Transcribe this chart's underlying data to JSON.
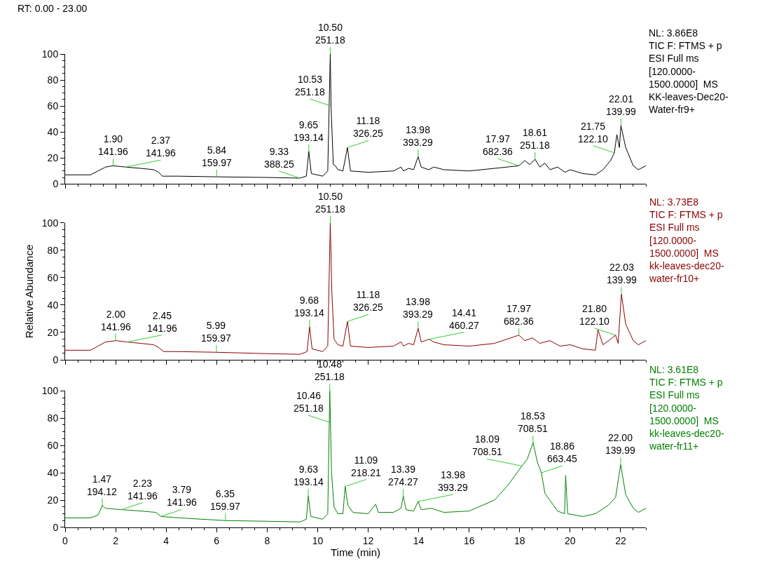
{
  "chart_data": [
    {
      "type": "line",
      "tick_labels": "y",
      "xlim": [
        0,
        23
      ],
      "xticks": [
        0,
        2,
        4,
        6,
        8,
        10,
        12,
        14,
        16,
        18,
        20,
        22
      ],
      "ylim": [
        0,
        100
      ],
      "yticks": [
        0,
        20,
        40,
        60,
        80,
        100
      ],
      "marker": "none",
      "line_style": "solid",
      "series": [
        {
          "color": "#000000",
          "x": [
            0,
            1,
            1.3,
            1.6,
            1.9,
            2.4,
            3.0,
            3.5,
            3.7,
            3.85,
            4.5,
            6,
            8,
            9.3,
            9.55,
            9.65,
            9.75,
            10.2,
            10.4,
            10.5,
            10.53,
            10.62,
            10.7,
            10.8,
            11.0,
            11.18,
            11.3,
            12,
            13,
            13.3,
            13.4,
            13.6,
            13.8,
            13.98,
            14.1,
            14.4,
            14.6,
            15,
            16,
            17,
            17.97,
            18.2,
            18.4,
            18.61,
            18.8,
            19,
            19.2,
            19.5,
            19.8,
            20,
            20.5,
            21,
            21.3,
            21.6,
            21.75,
            21.85,
            21.95,
            22.01,
            22.2,
            22.5,
            22.7,
            23
          ],
          "values": [
            7,
            7,
            10,
            13,
            14,
            13,
            12,
            11,
            9,
            6,
            6,
            5.5,
            5,
            4.5,
            6,
            25,
            8,
            6,
            10,
            100,
            60,
            15,
            14,
            11,
            10,
            28,
            10,
            9,
            10,
            13,
            10,
            12,
            11,
            21,
            13,
            11,
            13,
            11,
            10,
            12,
            14,
            18,
            15,
            19,
            13,
            16,
            11,
            13,
            9,
            11,
            8,
            7,
            11,
            18,
            24,
            38,
            28,
            45,
            28,
            14,
            11,
            14
          ]
        }
      ],
      "annotations": [
        "NL: 3.86E8\nTIC F: FTMS + p\nESI Full ms\n[120.0000-\n1500.0000]  MS\nKK-leaves-Dec20-\nWater-fr9+",
        "RT: 0.00 - 23.00",
        {
          "text": "1.90\n141.96",
          "x": 1.9,
          "y": 14
        },
        {
          "text": "2.37\n141.96",
          "x": 2.4,
          "y": 13
        },
        {
          "text": "5.84\n159.97",
          "x": 6,
          "y": 5.5
        },
        {
          "text": "9.33\n388.25",
          "x": 9.3,
          "y": 4.5
        },
        {
          "text": "9.65\n193.14",
          "x": 9.65,
          "y": 25
        },
        {
          "text": "10.50\n251.18",
          "x": 10.5,
          "y": 100
        },
        {
          "text": "10.53\n251.18",
          "x": 10.53,
          "y": 60
        },
        {
          "text": "11.18\n326.25",
          "x": 11.18,
          "y": 28
        },
        {
          "text": "13.98\n393.29",
          "x": 13.98,
          "y": 21
        },
        {
          "text": "17.97\n682.36",
          "x": 17.97,
          "y": 14
        },
        {
          "text": "18.61\n251.18",
          "x": 18.61,
          "y": 19
        },
        {
          "text": "21.75\n122.10",
          "x": 21.75,
          "y": 24
        },
        {
          "text": "22.01\n139.99",
          "x": 22.01,
          "y": 45
        }
      ]
    },
    {
      "type": "line",
      "tick_labels": "y",
      "ylabel": "Relative Abundance",
      "xlim": [
        0,
        23
      ],
      "xticks": [
        0,
        2,
        4,
        6,
        8,
        10,
        12,
        14,
        16,
        18,
        20,
        22
      ],
      "ylim": [
        0,
        100
      ],
      "yticks": [
        0,
        20,
        40,
        60,
        80,
        100
      ],
      "marker": "none",
      "line_style": "solid",
      "series": [
        {
          "color": "#8b0000",
          "x": [
            0,
            1,
            1.3,
            1.6,
            2.0,
            2.45,
            3.0,
            3.5,
            3.7,
            3.9,
            4.5,
            5.99,
            7,
            8,
            9.3,
            9.58,
            9.68,
            9.78,
            10.2,
            10.4,
            10.5,
            10.56,
            10.65,
            10.8,
            11.0,
            11.18,
            11.3,
            12,
            13,
            13.3,
            13.4,
            13.6,
            13.8,
            13.98,
            14.1,
            14.41,
            14.6,
            15,
            16,
            17,
            17.97,
            18.2,
            18.5,
            18.8,
            19.2,
            19.6,
            20,
            20.5,
            21,
            21.1,
            21.3,
            21.6,
            21.8,
            21.9,
            22.03,
            22.2,
            22.5,
            22.7,
            23
          ],
          "values": [
            7,
            7,
            10,
            13,
            14,
            13,
            12,
            11,
            9,
            6,
            6,
            5.5,
            5,
            4.5,
            4,
            6,
            24,
            8,
            6,
            10,
            100,
            50,
            15,
            11,
            10,
            28,
            10,
            9,
            10,
            13,
            10,
            12,
            11,
            23,
            13,
            15,
            13,
            11,
            10,
            12,
            18,
            14,
            16,
            12,
            14,
            10,
            11,
            8,
            7,
            22,
            11,
            15,
            18,
            12,
            48,
            26,
            14,
            11,
            14
          ]
        }
      ],
      "annotations": [
        "NL: 3.73E8\nTIC F: FTMS + p\nESI Full ms\n[120.0000-\n1500.0000]  MS\nkk-leaves-dec20-\nwater-fr10+",
        {
          "text": "2.00\n141.96",
          "x": 2.0,
          "y": 14
        },
        {
          "text": "2.45\n141.96",
          "x": 2.45,
          "y": 13
        },
        {
          "text": "5.99\n159.97",
          "x": 5.99,
          "y": 5.5
        },
        {
          "text": "9.68\n193.14",
          "x": 9.68,
          "y": 24
        },
        {
          "text": "10.50\n251.18",
          "x": 10.5,
          "y": 100
        },
        {
          "text": "11.18\n326.25",
          "x": 11.18,
          "y": 28
        },
        {
          "text": "13.98\n393.29",
          "x": 13.98,
          "y": 23
        },
        {
          "text": "14.41\n460.27",
          "x": 14.41,
          "y": 15
        },
        {
          "text": "17.97\n682.36",
          "x": 17.97,
          "y": 18
        },
        {
          "text": "21.80\n122.10",
          "x": 21.8,
          "y": 18
        },
        {
          "text": "22.03\n139.99",
          "x": 22.03,
          "y": 48
        }
      ]
    },
    {
      "type": "line",
      "xlabel": "Time (min)",
      "xlim": [
        0,
        23
      ],
      "xticks": [
        0,
        2,
        4,
        6,
        8,
        10,
        12,
        14,
        16,
        18,
        20,
        22
      ],
      "ylim": [
        0,
        100
      ],
      "yticks": [
        0,
        20,
        40,
        60,
        80,
        100
      ],
      "marker": "none",
      "line_style": "solid",
      "series": [
        {
          "color": "#008000",
          "x": [
            0,
            1,
            1.3,
            1.47,
            1.6,
            2.23,
            3.0,
            3.6,
            3.79,
            4.5,
            6.35,
            8,
            9.3,
            9.55,
            9.63,
            9.73,
            10.2,
            10.4,
            10.46,
            10.48,
            10.55,
            10.65,
            10.8,
            11.0,
            11.09,
            11.2,
            11.4,
            12,
            12.3,
            12.4,
            13,
            13.3,
            13.39,
            13.5,
            13.8,
            13.98,
            14.1,
            14.5,
            15,
            16,
            17,
            17.5,
            18.09,
            18.3,
            18.53,
            18.7,
            18.86,
            19.0,
            19.5,
            19.78,
            19.82,
            19.9,
            20.5,
            21,
            21.5,
            21.8,
            22.0,
            22.2,
            22.5,
            22.7,
            23
          ],
          "values": [
            7,
            7,
            9,
            16,
            14,
            13,
            12,
            11,
            8,
            7,
            5,
            4.5,
            4,
            6,
            23,
            8,
            6,
            10,
            77,
            100,
            40,
            15,
            10,
            10,
            30,
            16,
            11,
            10,
            17,
            11,
            11,
            14,
            23,
            13,
            12,
            19,
            13,
            14,
            11,
            12,
            20,
            30,
            45,
            50,
            62,
            48,
            40,
            25,
            12,
            10,
            38,
            10,
            8,
            10,
            16,
            22,
            46,
            24,
            14,
            11,
            14
          ]
        }
      ],
      "annotations": [
        "NL: 3.61E8\nTIC F: FTMS + p\nESI Full ms\n[120.0000-\n1500.0000]  MS\nkk-leaves-dec20-\nwater-fr11+",
        {
          "text": "1.47\n194.12",
          "x": 1.47,
          "y": 16
        },
        {
          "text": "2.23\n141.96",
          "x": 2.23,
          "y": 13
        },
        {
          "text": "3.79\n141.96",
          "x": 3.79,
          "y": 8
        },
        {
          "text": "6.35\n159.97",
          "x": 6.35,
          "y": 5
        },
        {
          "text": "9.63\n193.14",
          "x": 9.63,
          "y": 23
        },
        {
          "text": "10.46\n251.18",
          "x": 10.46,
          "y": 77
        },
        {
          "text": "10.48\n251.18",
          "x": 10.48,
          "y": 100
        },
        {
          "text": "11.09\n218.21",
          "x": 11.09,
          "y": 30
        },
        {
          "text": "13.39\n274.27",
          "x": 13.39,
          "y": 23
        },
        {
          "text": "13.98\n393.29",
          "x": 13.98,
          "y": 19
        },
        {
          "text": "18.09\n708.51",
          "x": 18.09,
          "y": 45
        },
        {
          "text": "18.53\n708.51",
          "x": 18.53,
          "y": 62
        },
        {
          "text": "18.86\n663.45",
          "x": 18.86,
          "y": 40
        },
        {
          "text": "22.00\n139.99",
          "x": 22.0,
          "y": 46
        }
      ]
    }
  ]
}
